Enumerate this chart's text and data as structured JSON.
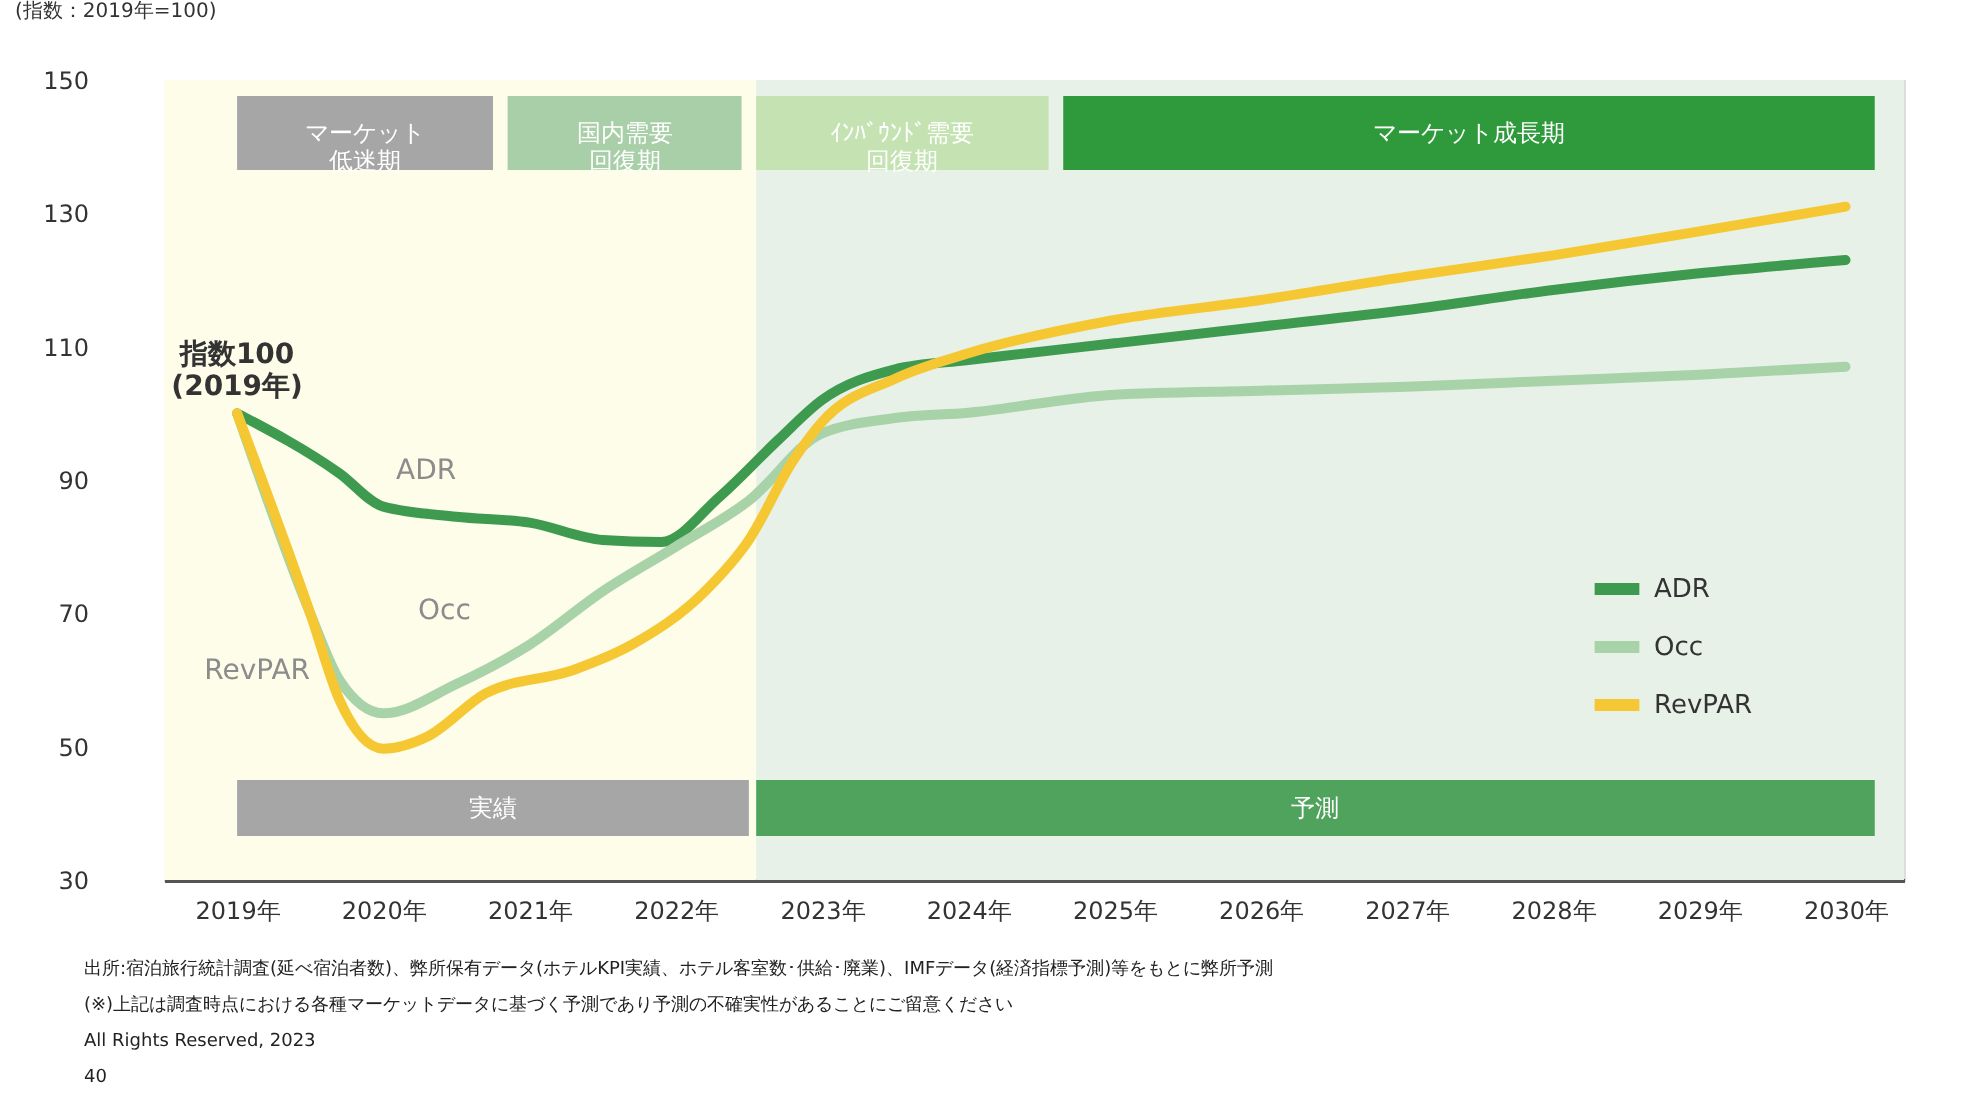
{
  "chart_data": {
    "type": "line",
    "ylabel": "(指数：2019年=100)",
    "xlim": [
      2018.5,
      2030.4
    ],
    "ylim": [
      30,
      150
    ],
    "xticks": [
      {
        "value": 2019,
        "label": "2019年"
      },
      {
        "value": 2020,
        "label": "2020年"
      },
      {
        "value": 2021,
        "label": "2021年"
      },
      {
        "value": 2022,
        "label": "2022年"
      },
      {
        "value": 2023,
        "label": "2023年"
      },
      {
        "value": 2024,
        "label": "2024年"
      },
      {
        "value": 2025,
        "label": "2025年"
      },
      {
        "value": 2026,
        "label": "2026年"
      },
      {
        "value": 2027,
        "label": "2027年"
      },
      {
        "value": 2028,
        "label": "2028年"
      },
      {
        "value": 2029,
        "label": "2029年"
      },
      {
        "value": 2030,
        "label": "2030年"
      }
    ],
    "yticks": [
      30,
      50,
      70,
      90,
      110,
      130,
      150
    ],
    "grid": false,
    "legend": "bottom right",
    "marker": "none",
    "line_style": "solid",
    "series": [
      {
        "name": "ADR",
        "color": "#3d9a4f",
        "x": [
          2019,
          2019.7,
          2020,
          2020.5,
          2021,
          2021.5,
          2021.9,
          2022.3,
          2022.7,
          2023,
          2023.5,
          2024,
          2025,
          2026,
          2027,
          2028,
          2029,
          2030
        ],
        "values": [
          100,
          91,
          86,
          84.5,
          83.6,
          81,
          80.7,
          87.5,
          96,
          102,
          106.6,
          108,
          110.5,
          113,
          115.5,
          118.5,
          121,
          123
        ]
      },
      {
        "name": "Occ",
        "color": "#a8d2a8",
        "x": [
          2019,
          2019.5,
          2019.7,
          2020,
          2020.5,
          2021,
          2021.5,
          2022,
          2022.5,
          2023,
          2023.5,
          2024,
          2025,
          2026,
          2027,
          2028,
          2029,
          2030
        ],
        "values": [
          100,
          70,
          60,
          55,
          59.4,
          65.3,
          73.3,
          80,
          86.9,
          97,
          99.3,
          100.1,
          102.8,
          103.4,
          104,
          104.9,
          105.8,
          107
        ]
      },
      {
        "name": "RevPAR",
        "color": "#f5c833",
        "x": [
          2019,
          2019.5,
          2019.7,
          2020,
          2020.3,
          2020.7,
          2021.3,
          2021.7,
          2022.2,
          2022.5,
          2022.8,
          2023,
          2023.5,
          2024,
          2025,
          2026,
          2027,
          2028,
          2029,
          2030
        ],
        "values": [
          100,
          70,
          57,
          49.7,
          51.5,
          58,
          61.5,
          65.3,
          73.3,
          81,
          92.8,
          98.7,
          105.2,
          109,
          114,
          117,
          120.5,
          123.7,
          127.3,
          131
        ]
      }
    ],
    "bands": [
      {
        "axis": "x",
        "from": 2018.5,
        "to": 2022.55,
        "color": "#fdfde9"
      },
      {
        "axis": "x",
        "from": 2022.55,
        "to": 2030.4,
        "color": "#e8f1e8"
      },
      {
        "axis": "x",
        "from": 2019,
        "to": 2020.75,
        "label": "マーケット低迷期",
        "color": "#a6a6a6"
      },
      {
        "axis": "x",
        "from": 2020.85,
        "to": 2022.45,
        "label": "国内需要回復期",
        "color": "#a9cfa9"
      },
      {
        "axis": "x",
        "from": 2022.55,
        "to": 2024.55,
        "label": "ｲﾝﾊﾞｳﾝﾄﾞ需要回復期",
        "color": "#c5e3b2"
      },
      {
        "axis": "x",
        "from": 2024.65,
        "to": 2030.2,
        "label": "マーケット成長期",
        "color": "#2e9a3c"
      },
      {
        "axis": "x",
        "from": 2019,
        "to": 2022.5,
        "label": "実績",
        "color": "#a6a6a6"
      },
      {
        "axis": "x",
        "from": 2022.55,
        "to": 2030.2,
        "label": "予測",
        "color": "#4fa35c"
      }
    ],
    "annotations": [
      {
        "text": "指数100\n(2019年)",
        "x": 2019,
        "y": 100
      },
      {
        "text": "ADR",
        "x": 2020.8,
        "y": 85
      },
      {
        "text": "Occ",
        "x": 2020.9,
        "y": 64
      },
      {
        "text": "RevPAR",
        "x": 2019.8,
        "y": 55
      },
      "出所:宿泊旅行統計調査(延べ宿泊者数)、弊所保有データ(ホテルKPI実績、ホテル客室数･供給･廃業)、IMFデータ(経済指標予測)等をもとに弊所予測",
      "(※)上記は調査時点における各種マーケットデータに基づく予測であり予測の不確実性があることにご留意ください",
      "All Rights Reserved, 2023",
      "40"
    ]
  }
}
